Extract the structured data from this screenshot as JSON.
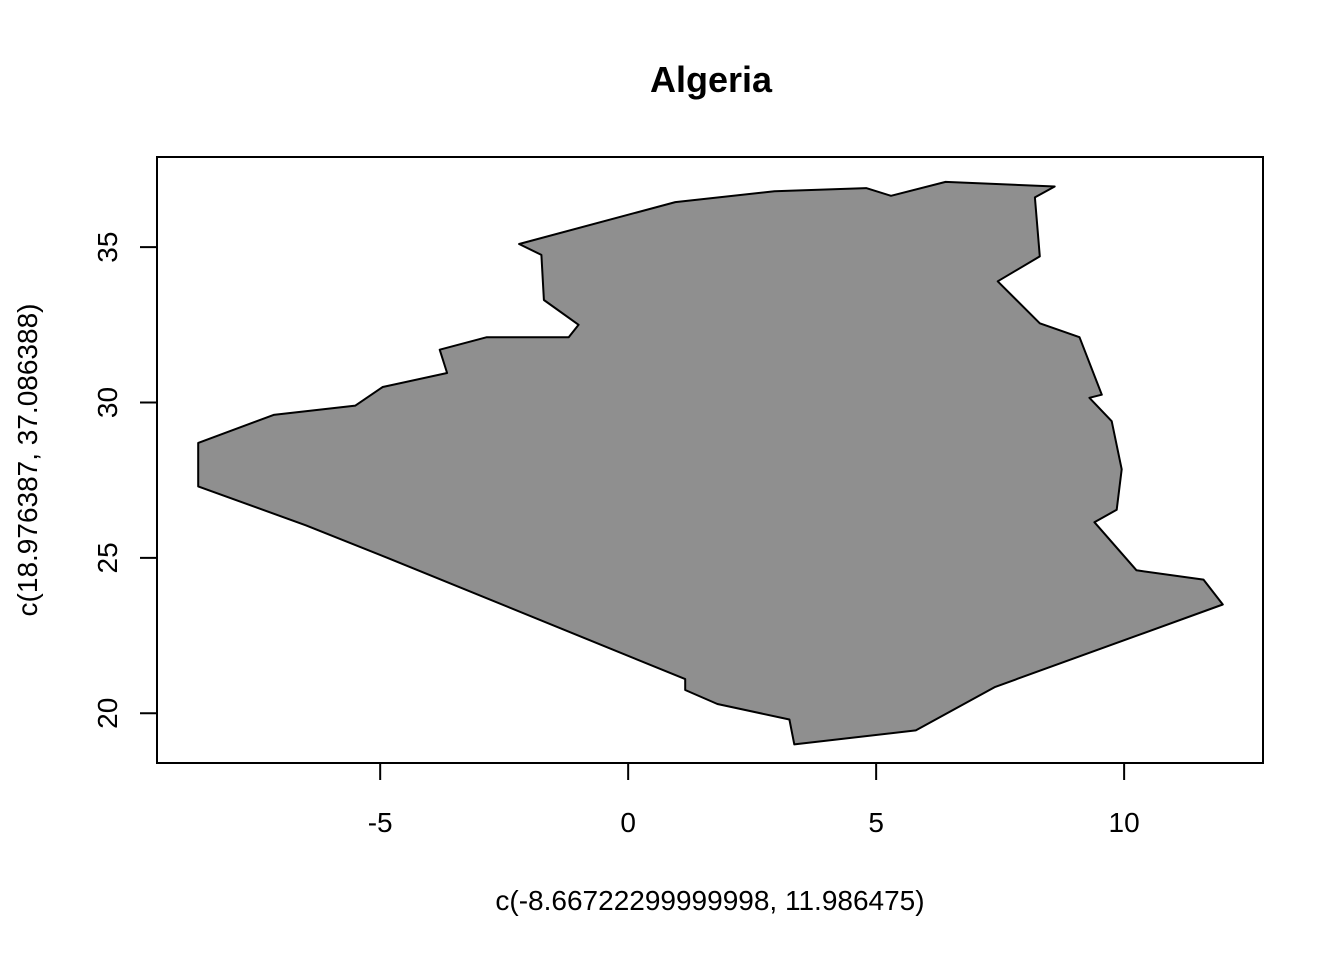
{
  "chart_data": {
    "type": "map",
    "title": "Algeria",
    "xlabel": "c(-8.66722299999998, 11.986475)",
    "ylabel": "c(18.976387, 37.086388)",
    "xlim": [
      -9.5,
      12.8
    ],
    "ylim": [
      18.4,
      37.9
    ],
    "x_ticks": [
      -5,
      0,
      5,
      10
    ],
    "x_tick_labels": [
      "-5",
      "0",
      "5",
      "10"
    ],
    "y_ticks": [
      20,
      25,
      30,
      35
    ],
    "y_tick_labels": [
      "20",
      "25",
      "30",
      "35"
    ],
    "fill_color": "#8f8f8f",
    "stroke_color": "#000000",
    "regions": [
      {
        "name": "Algeria",
        "polygon": [
          [
            -2.2,
            35.1
          ],
          [
            0.95,
            36.45
          ],
          [
            2.95,
            36.8
          ],
          [
            4.8,
            36.9
          ],
          [
            5.3,
            36.65
          ],
          [
            6.4,
            37.1
          ],
          [
            8.6,
            36.95
          ],
          [
            8.2,
            36.6
          ],
          [
            8.3,
            34.7
          ],
          [
            7.45,
            33.9
          ],
          [
            8.3,
            32.55
          ],
          [
            9.1,
            32.1
          ],
          [
            9.55,
            30.25
          ],
          [
            9.3,
            30.15
          ],
          [
            9.75,
            29.4
          ],
          [
            9.95,
            27.85
          ],
          [
            9.85,
            26.55
          ],
          [
            9.4,
            26.15
          ],
          [
            10.25,
            24.6
          ],
          [
            11.6,
            24.3
          ],
          [
            11.99,
            23.5
          ],
          [
            7.4,
            20.85
          ],
          [
            5.8,
            19.45
          ],
          [
            3.35,
            19.0
          ],
          [
            3.25,
            19.8
          ],
          [
            1.8,
            20.3
          ],
          [
            1.15,
            20.75
          ],
          [
            1.15,
            21.1
          ],
          [
            -4.85,
            25.0
          ],
          [
            -6.5,
            26.05
          ],
          [
            -8.67,
            27.3
          ],
          [
            -8.67,
            28.7
          ],
          [
            -7.15,
            29.6
          ],
          [
            -5.5,
            29.9
          ],
          [
            -4.95,
            30.5
          ],
          [
            -3.65,
            30.95
          ],
          [
            -3.8,
            31.7
          ],
          [
            -2.85,
            32.1
          ],
          [
            -1.2,
            32.1
          ],
          [
            -1.0,
            32.5
          ],
          [
            -1.7,
            33.3
          ],
          [
            -1.75,
            34.75
          ]
        ]
      }
    ]
  }
}
